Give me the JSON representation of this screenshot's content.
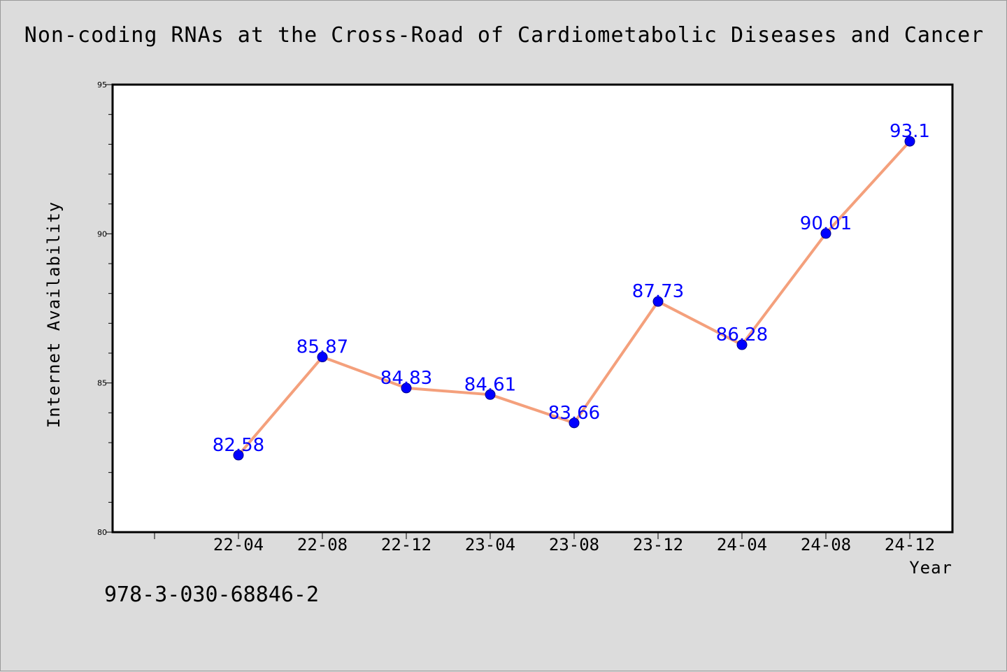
{
  "chart_data": {
    "type": "line",
    "title": "Non-coding RNAs at the Cross-Road of Cardiometabolic Diseases and Cancer",
    "xlabel": "Year",
    "ylabel": "Internet Availability",
    "categories": [
      "22-04",
      "22-08",
      "22-12",
      "23-04",
      "23-08",
      "23-12",
      "24-04",
      "24-08",
      "24-12"
    ],
    "series": [
      {
        "values": [
          82.58,
          85.87,
          84.83,
          84.61,
          83.66,
          87.73,
          86.28,
          90.01,
          93.1
        ],
        "labels": [
          "82.58",
          "85.87",
          "84.83",
          "84.61",
          "83.66",
          "87.73",
          "86.28",
          "90.01",
          "93.1"
        ]
      }
    ],
    "ylim": [
      80,
      95
    ],
    "yticks": [
      "80",
      "85",
      "90",
      "95"
    ],
    "grid": false,
    "colors": {
      "line": "#f4a07c",
      "marker": "#0000ff",
      "data_label": "#0000ff"
    }
  },
  "footer": {
    "isbn": "978-3-030-68846-2"
  }
}
